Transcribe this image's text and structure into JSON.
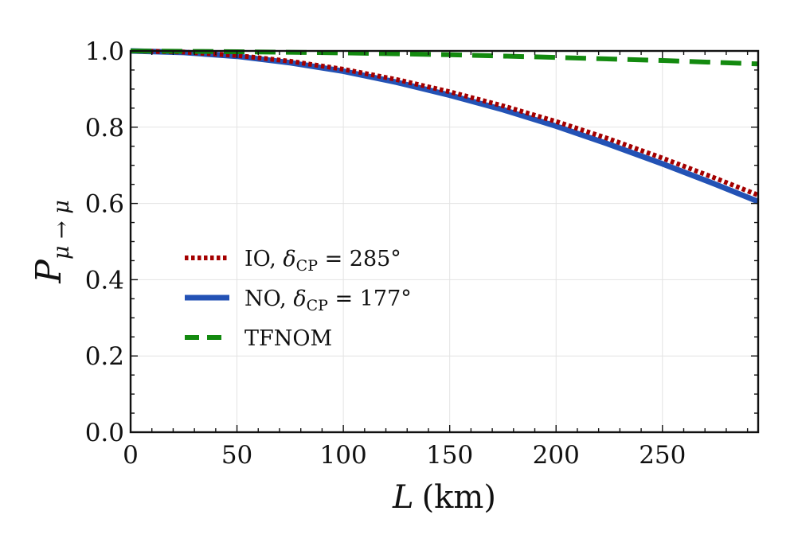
{
  "chart_data": {
    "type": "line",
    "title": "",
    "xlabel": {
      "symbol": "L",
      "unit": "(km)"
    },
    "ylabel": {
      "symbol": "P",
      "subscript": "μ → μ"
    },
    "xlim": [
      0,
      295
    ],
    "ylim": [
      0.0,
      1.0
    ],
    "x_ticks": [
      0,
      50,
      100,
      150,
      200,
      250
    ],
    "y_ticks": [
      0.0,
      0.2,
      0.4,
      0.6,
      0.8,
      1.0
    ],
    "x_tick_labels": [
      "0",
      "50",
      "100",
      "150",
      "200",
      "250"
    ],
    "y_tick_labels": [
      "0.0",
      "0.2",
      "0.4",
      "0.6",
      "0.8",
      "1.0"
    ],
    "grid": true,
    "legend_position": "center-left",
    "series": [
      {
        "name": "IO, δCP = 285°",
        "legend": {
          "main": "IO, ",
          "delta": "δ",
          "sub": "CP",
          "rest": " = 285°"
        },
        "color": "#a40000",
        "style": "dotted",
        "x": [
          0,
          25,
          50,
          75,
          100,
          125,
          150,
          175,
          200,
          225,
          250,
          275,
          295
        ],
        "y": [
          1.0,
          0.997,
          0.988,
          0.973,
          0.952,
          0.925,
          0.893,
          0.856,
          0.815,
          0.769,
          0.719,
          0.666,
          0.622
        ]
      },
      {
        "name": "NO, δCP = 177°",
        "legend": {
          "main": "NO, ",
          "delta": "δ",
          "sub": "CP",
          "rest": " = 177°"
        },
        "color": "#2352b5",
        "style": "solid",
        "x": [
          0,
          25,
          50,
          75,
          100,
          125,
          150,
          175,
          200,
          225,
          250,
          275,
          295
        ],
        "y": [
          1.0,
          0.996,
          0.986,
          0.969,
          0.947,
          0.918,
          0.884,
          0.846,
          0.803,
          0.755,
          0.704,
          0.65,
          0.605
        ]
      },
      {
        "name": "TFNOM",
        "legend": {
          "main": "TFNOM",
          "delta": "",
          "sub": "",
          "rest": ""
        },
        "color": "#138a0f",
        "style": "dashed",
        "x": [
          0,
          50,
          100,
          150,
          200,
          250,
          295
        ],
        "y": [
          1.0,
          0.998,
          0.995,
          0.99,
          0.983,
          0.975,
          0.966
        ]
      }
    ]
  }
}
